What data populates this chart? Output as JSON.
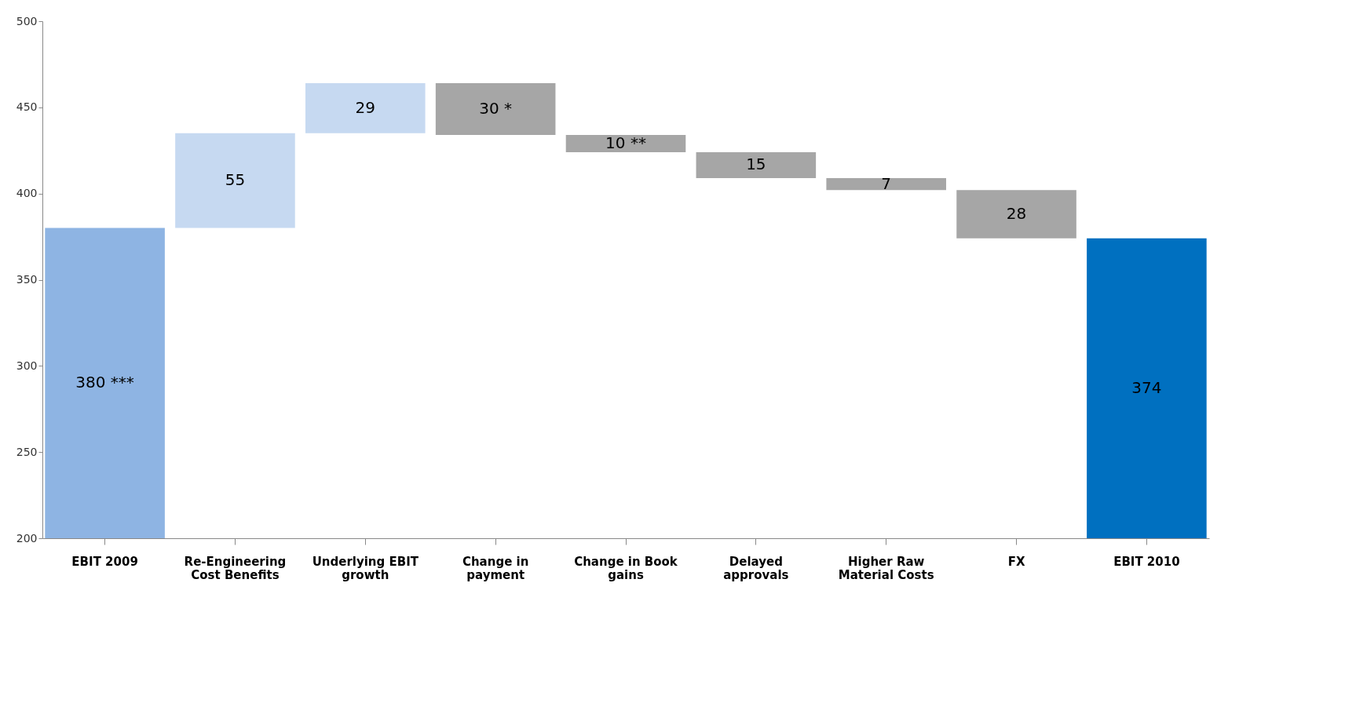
{
  "chart_data": {
    "type": "bar",
    "categories": [
      "EBIT 2009",
      "Re-Engineering Cost Benefits",
      "Underlying EBIT growth",
      "Change in payment",
      "Change in Book gains",
      "Delayed approvals",
      "Higher Raw Material Costs",
      "FX",
      "EBIT 2010"
    ],
    "values": [
      380,
      55,
      29,
      30,
      10,
      15,
      7,
      28,
      374
    ],
    "base": [
      0,
      380,
      435,
      434,
      424,
      409,
      402,
      374,
      0
    ],
    "colors": [
      "#8eb4e3",
      "#c6d9f1",
      "#c6d9f1",
      "#a6a6a6",
      "#a6a6a6",
      "#a6a6a6",
      "#a6a6a6",
      "#a6a6a6",
      "#0070c0"
    ],
    "value_labels": [
      "380 ***",
      "55",
      "29",
      "30 *",
      "10 **",
      "15",
      "7",
      "28",
      "374"
    ],
    "ylim": [
      200,
      500
    ],
    "yticks": [
      200,
      250,
      300,
      350,
      400,
      450,
      500
    ],
    "grid": false
  }
}
